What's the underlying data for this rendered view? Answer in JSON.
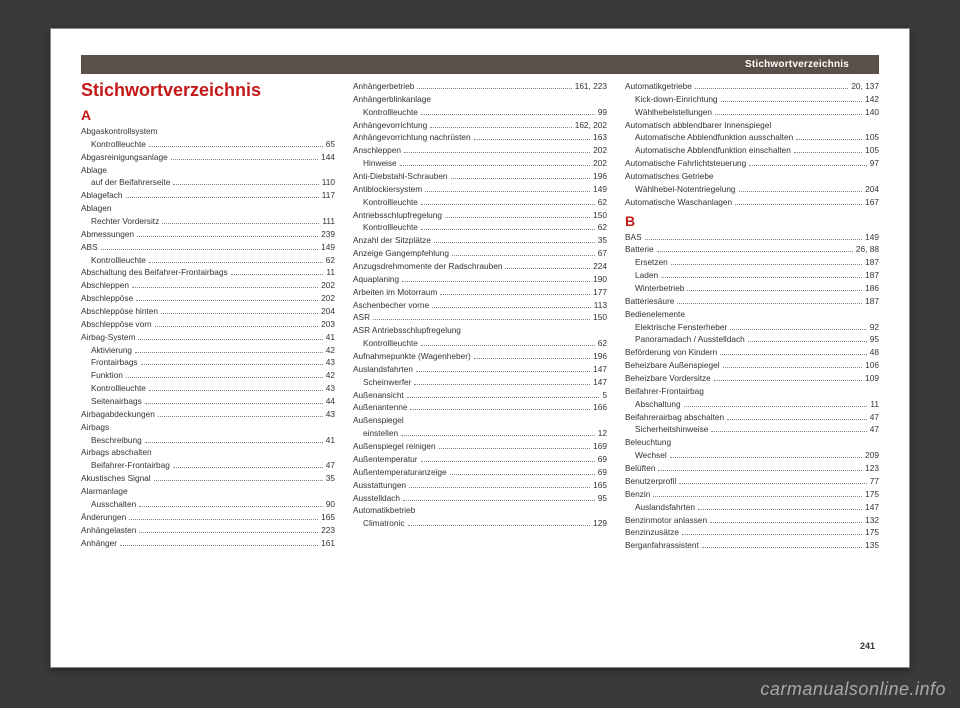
{
  "header": {
    "text": "Stichwortverzeichnis"
  },
  "title": "Stichwortverzeichnis",
  "pageNumber": "241",
  "watermark": "carmanualsonline.info",
  "columns": [
    {
      "letter": "A",
      "entries": [
        {
          "label": "Abgaskontrollsystem",
          "page": "",
          "sub": false
        },
        {
          "label": "Kontrollleuchte",
          "page": "65",
          "sub": true
        },
        {
          "label": "Abgasreinigungsanlage",
          "page": "144",
          "sub": false
        },
        {
          "label": "Ablage",
          "page": "",
          "sub": false
        },
        {
          "label": "auf der Beifahrerseite",
          "page": "110",
          "sub": true
        },
        {
          "label": "Ablagefach",
          "page": "117",
          "sub": false
        },
        {
          "label": "Ablagen",
          "page": "",
          "sub": false
        },
        {
          "label": "Rechter Vordersitz",
          "page": "111",
          "sub": true
        },
        {
          "label": "Abmessungen",
          "page": "239",
          "sub": false
        },
        {
          "label": "ABS",
          "page": "149",
          "sub": false
        },
        {
          "label": "Kontrollleuchte",
          "page": "62",
          "sub": true
        },
        {
          "label": "Abschaltung des Beifahrer-Frontairbags",
          "page": "11",
          "sub": false
        },
        {
          "label": "Abschleppen",
          "page": "202",
          "sub": false
        },
        {
          "label": "Abschleppöse",
          "page": "202",
          "sub": false
        },
        {
          "label": "Abschleppöse hinten",
          "page": "204",
          "sub": false
        },
        {
          "label": "Abschleppöse vorn",
          "page": "203",
          "sub": false
        },
        {
          "label": "Airbag-System",
          "page": "41",
          "sub": false
        },
        {
          "label": "Aktivierung",
          "page": "42",
          "sub": true
        },
        {
          "label": "Frontairbags",
          "page": "43",
          "sub": true
        },
        {
          "label": "Funktion",
          "page": "42",
          "sub": true
        },
        {
          "label": "Kontrollleuchte",
          "page": "43",
          "sub": true
        },
        {
          "label": "Seitenairbags",
          "page": "44",
          "sub": true
        },
        {
          "label": "Airbagabdeckungen",
          "page": "43",
          "sub": false
        },
        {
          "label": "Airbags",
          "page": "",
          "sub": false
        },
        {
          "label": "Beschreibung",
          "page": "41",
          "sub": true
        },
        {
          "label": "Airbags abschalten",
          "page": "",
          "sub": false
        },
        {
          "label": "Beifahrer-Frontairbag",
          "page": "47",
          "sub": true
        },
        {
          "label": "Akustisches Signal",
          "page": "35",
          "sub": false
        },
        {
          "label": "Alarmanlage",
          "page": "",
          "sub": false
        },
        {
          "label": "Ausschalten",
          "page": "90",
          "sub": true
        },
        {
          "label": "Änderungen",
          "page": "165",
          "sub": false
        },
        {
          "label": "Anhängelasten",
          "page": "223",
          "sub": false
        },
        {
          "label": "Anhänger",
          "page": "161",
          "sub": false
        }
      ]
    },
    {
      "entries": [
        {
          "label": "Anhängerbetrieb",
          "page": "161, 223",
          "sub": false
        },
        {
          "label": "Anhängerblinkanlage",
          "page": "",
          "sub": false
        },
        {
          "label": "Kontrollleuchte",
          "page": "99",
          "sub": true
        },
        {
          "label": "Anhängevorrichtung",
          "page": "162, 202",
          "sub": false
        },
        {
          "label": "Anhängevorrichtung nachrüsten",
          "page": "163",
          "sub": false
        },
        {
          "label": "Anschleppen",
          "page": "202",
          "sub": false
        },
        {
          "label": "Hinweise",
          "page": "202",
          "sub": true
        },
        {
          "label": "Anti-Diebstahl-Schrauben",
          "page": "196",
          "sub": false
        },
        {
          "label": "Antiblockiersystem",
          "page": "149",
          "sub": false
        },
        {
          "label": "Kontrollleuchte",
          "page": "62",
          "sub": true
        },
        {
          "label": "Antriebsschlupfregelung",
          "page": "150",
          "sub": false
        },
        {
          "label": "Kontrollleuchte",
          "page": "62",
          "sub": true
        },
        {
          "label": "Anzahl der Sitzplätze",
          "page": "35",
          "sub": false
        },
        {
          "label": "Anzeige Gangempfehlung",
          "page": "67",
          "sub": false
        },
        {
          "label": "Anzugsdrehmomente der Radschrauben",
          "page": "224",
          "sub": false
        },
        {
          "label": "Aquaplaning",
          "page": "190",
          "sub": false
        },
        {
          "label": "Arbeiten im Motorraum",
          "page": "177",
          "sub": false
        },
        {
          "label": "Aschenbecher vorne",
          "page": "113",
          "sub": false
        },
        {
          "label": "ASR",
          "page": "150",
          "sub": false
        },
        {
          "label": "ASR Antriebsschlupfregelung",
          "page": "",
          "sub": false
        },
        {
          "label": "Kontrollleuchte",
          "page": "62",
          "sub": true
        },
        {
          "label": "Aufnahmepunkte (Wagenheber)",
          "page": "196",
          "sub": false
        },
        {
          "label": "Auslandsfahrten",
          "page": "147",
          "sub": false
        },
        {
          "label": "Scheinwerfer",
          "page": "147",
          "sub": true
        },
        {
          "label": "Außenansicht",
          "page": "5",
          "sub": false
        },
        {
          "label": "Außenantenne",
          "page": "166",
          "sub": false
        },
        {
          "label": "Außenspiegel",
          "page": "",
          "sub": false
        },
        {
          "label": "einstellen",
          "page": "12",
          "sub": true
        },
        {
          "label": "Außenspiegel reinigen",
          "page": "169",
          "sub": false
        },
        {
          "label": "Außentemperatur",
          "page": "69",
          "sub": false
        },
        {
          "label": "Außentemperaturanzeige",
          "page": "69",
          "sub": false
        },
        {
          "label": "Ausstattungen",
          "page": "165",
          "sub": false
        },
        {
          "label": "Ausstelldach",
          "page": "95",
          "sub": false
        },
        {
          "label": "Automatikbetrieb",
          "page": "",
          "sub": false
        },
        {
          "label": "Climatronic",
          "page": "129",
          "sub": true
        }
      ]
    },
    {
      "entries": [
        {
          "label": "Automatikgetriebe",
          "page": "20, 137",
          "sub": false
        },
        {
          "label": "Kick-down-Einrichtung",
          "page": "142",
          "sub": true
        },
        {
          "label": "Wählhebelstellungen",
          "page": "140",
          "sub": true
        },
        {
          "label": "Automatisch abblendbarer Innenspiegel",
          "page": "",
          "sub": false
        },
        {
          "label": "Automatische Abblendfunktion ausschalten",
          "page": "105",
          "sub": true
        },
        {
          "label": "Automatische Abblendfunktion einschalten",
          "page": "105",
          "sub": true
        },
        {
          "label": "Automatische Fahrlichtsteuerung",
          "page": "97",
          "sub": false
        },
        {
          "label": "Automatisches Getriebe",
          "page": "",
          "sub": false
        },
        {
          "label": "Wählhebel-Notentriegelung",
          "page": "204",
          "sub": true
        },
        {
          "label": "Automatische Waschanlagen",
          "page": "167",
          "sub": false
        }
      ],
      "letter": "B",
      "entriesB": [
        {
          "label": "BAS",
          "page": "149",
          "sub": false
        },
        {
          "label": "Batterie",
          "page": "26, 88",
          "sub": false
        },
        {
          "label": "Ersetzen",
          "page": "187",
          "sub": true
        },
        {
          "label": "Laden",
          "page": "187",
          "sub": true
        },
        {
          "label": "Winterbetrieb",
          "page": "186",
          "sub": true
        },
        {
          "label": "Batteriesäure",
          "page": "187",
          "sub": false
        },
        {
          "label": "Bedienelemente",
          "page": "",
          "sub": false
        },
        {
          "label": "Elektrische Fensterheber",
          "page": "92",
          "sub": true
        },
        {
          "label": "Panoramadach / Ausstelldach",
          "page": "95",
          "sub": true
        },
        {
          "label": "Beförderung von Kindern",
          "page": "48",
          "sub": false
        },
        {
          "label": "Beheizbare Außenspiegel",
          "page": "106",
          "sub": false
        },
        {
          "label": "Beheizbare Vordersitze",
          "page": "109",
          "sub": false
        },
        {
          "label": "Beifahrer-Frontairbag",
          "page": "",
          "sub": false
        },
        {
          "label": "Abschaltung",
          "page": "11",
          "sub": true
        },
        {
          "label": "Beifahrerairbag abschalten",
          "page": "47",
          "sub": false
        },
        {
          "label": "Sicherheitshinweise",
          "page": "47",
          "sub": true
        },
        {
          "label": "Beleuchtung",
          "page": "",
          "sub": false
        },
        {
          "label": "Wechsel",
          "page": "209",
          "sub": true
        },
        {
          "label": "Belüften",
          "page": "123",
          "sub": false
        },
        {
          "label": "Benutzerprofil",
          "page": "77",
          "sub": false
        },
        {
          "label": "Benzin",
          "page": "175",
          "sub": false
        },
        {
          "label": "Auslandsfahrten",
          "page": "147",
          "sub": true
        },
        {
          "label": "Benzinmotor anlassen",
          "page": "132",
          "sub": false
        },
        {
          "label": "Benzinzusätze",
          "page": "175",
          "sub": false
        },
        {
          "label": "Berganfahrassistent",
          "page": "135",
          "sub": false
        }
      ]
    }
  ]
}
